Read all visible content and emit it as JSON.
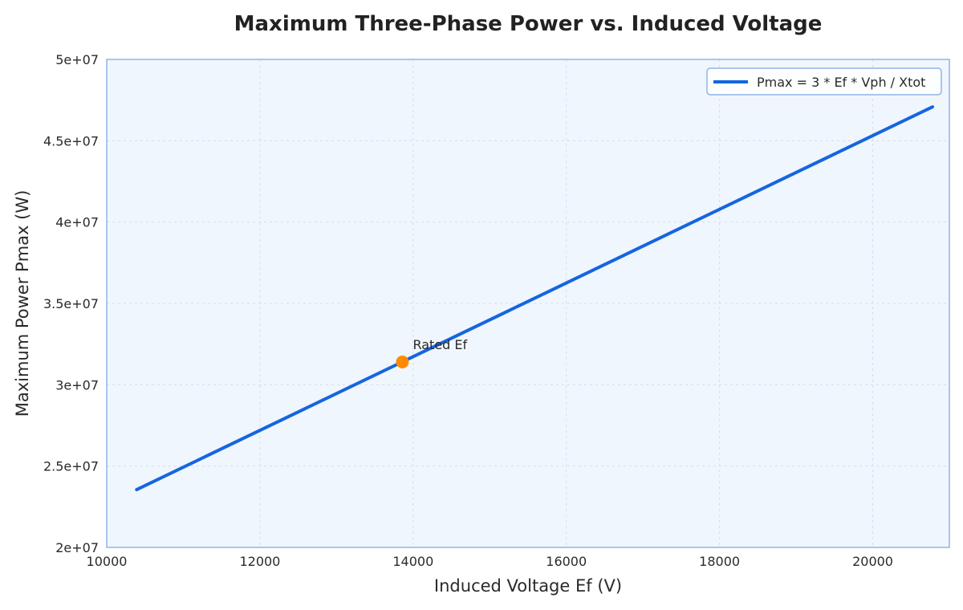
{
  "chart_data": {
    "type": "line",
    "title": "Maximum Three-Phase Power vs. Induced Voltage",
    "xlabel": "Induced Voltage Ef (V)",
    "ylabel": "Maximum Power Pmax (W)",
    "xlim": [
      10000,
      21000
    ],
    "ylim": [
      20000000,
      50000000
    ],
    "xticks": [
      10000,
      12000,
      14000,
      16000,
      18000,
      20000
    ],
    "xtick_labels": [
      "10000",
      "12000",
      "14000",
      "16000",
      "18000",
      "20000"
    ],
    "yticks": [
      20000000,
      25000000,
      30000000,
      35000000,
      40000000,
      45000000,
      50000000
    ],
    "ytick_labels": [
      "2e+07",
      "2.5e+07",
      "3e+07",
      "3.5e+07",
      "4e+07",
      "4.5e+07",
      "5e+07"
    ],
    "grid": true,
    "legend_position": "top-right",
    "series": [
      {
        "name": "Pmax = 3 * Ef * Vph / Xtot",
        "color": "#1565e0",
        "x": [
          10390,
          20780
        ],
        "y": [
          23550000,
          47080000
        ]
      }
    ],
    "markers": [
      {
        "label": "Rated Ef",
        "x": 13860,
        "y": 31400000,
        "color": "#ff8c00"
      }
    ]
  },
  "colors": {
    "plot_background": "#f0f6fd",
    "plot_border": "#90b4ea"
  }
}
